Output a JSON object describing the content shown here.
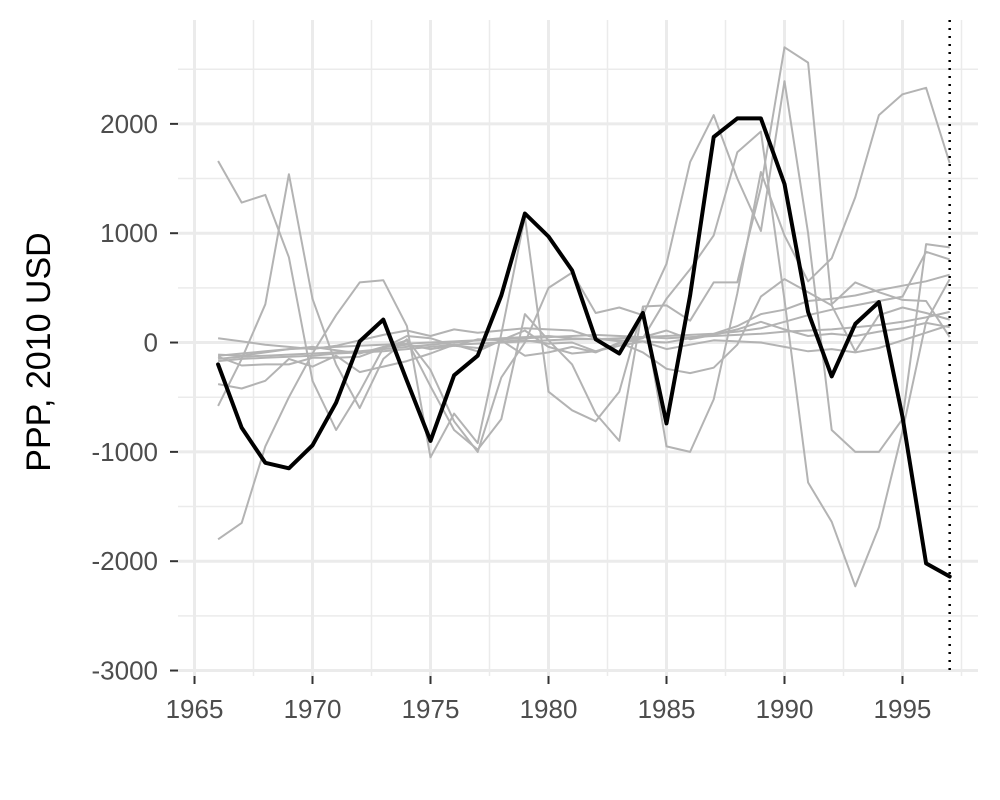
{
  "chart_data": {
    "type": "line",
    "title": "",
    "xlabel": "",
    "ylabel": "PPP, 2010 USD",
    "xlim": [
      1964.3,
      1998.2
    ],
    "ylim": [
      -3050,
      2950
    ],
    "x_ticks": [
      1965,
      1970,
      1975,
      1980,
      1985,
      1990,
      1995
    ],
    "y_ticks": [
      -3000,
      -2000,
      -1000,
      0,
      1000,
      2000
    ],
    "x_tick_labels": [
      "1965",
      "1970",
      "1975",
      "1980",
      "1985",
      "1990",
      "1995"
    ],
    "y_tick_labels": [
      "-3000",
      "-2000",
      "-1000",
      "0",
      "1000",
      "2000"
    ],
    "grid": true,
    "legend": "none",
    "reference_line": {
      "x": 1997,
      "style": "dotted",
      "color": "#000000"
    },
    "colors": {
      "highlight": "#000000",
      "background_series": "#b3b3b3",
      "grid": "#ebebeb"
    },
    "x": [
      1966,
      1967,
      1968,
      1969,
      1970,
      1971,
      1972,
      1973,
      1974,
      1975,
      1976,
      1977,
      1978,
      1979,
      1980,
      1981,
      1982,
      1983,
      1984,
      1985,
      1986,
      1987,
      1988,
      1989,
      1990,
      1991,
      1992,
      1993,
      1994,
      1995,
      1996,
      1997
    ],
    "highlight_series": {
      "values": [
        -200,
        -780,
        -1100,
        -1150,
        -940,
        -550,
        10,
        210,
        -350,
        -900,
        -300,
        -120,
        430,
        1180,
        970,
        660,
        30,
        -100,
        270,
        -740,
        430,
        1880,
        2050,
        2050,
        1450,
        280,
        -310,
        170,
        370,
        -680,
        -2020,
        -2140
      ]
    },
    "series": [
      {
        "values": [
          1660,
          1280,
          1350,
          780,
          -350,
          -800,
          -450,
          -50,
          20,
          -400,
          -800,
          -980,
          -700,
          260,
          20,
          -200,
          -650,
          -900,
          330,
          340,
          200,
          550,
          550,
          1420,
          2700,
          2560,
          350,
          550,
          460,
          390,
          380,
          50
        ]
      },
      {
        "values": [
          -580,
          -150,
          350,
          1540,
          400,
          -200,
          -600,
          -150,
          30,
          -250,
          -720,
          -1000,
          -320,
          0,
          500,
          640,
          270,
          320,
          250,
          720,
          1650,
          2080,
          1500,
          1020,
          2390,
          1000,
          -800,
          -1000,
          -1000,
          -700,
          900,
          870
        ]
      },
      {
        "values": [
          -1800,
          -1650,
          -950,
          -500,
          -100,
          250,
          550,
          570,
          150,
          -1050,
          -650,
          -920,
          80,
          1150,
          -450,
          -620,
          -720,
          -450,
          320,
          -950,
          -1000,
          -520,
          450,
          1560,
          980,
          560,
          770,
          1330,
          2080,
          2270,
          2330,
          1640
        ]
      },
      {
        "values": [
          -380,
          -420,
          -350,
          -150,
          -220,
          -120,
          -270,
          -220,
          -170,
          -100,
          -20,
          -80,
          20,
          -120,
          -90,
          -40,
          -90,
          0,
          -90,
          -240,
          -280,
          -230,
          -20,
          420,
          580,
          460,
          340,
          -80,
          250,
          320,
          270,
          210
        ]
      },
      {
        "values": [
          -130,
          -210,
          -200,
          -200,
          -140,
          -140,
          -130,
          -50,
          60,
          40,
          -30,
          30,
          20,
          110,
          -40,
          -100,
          -80,
          -10,
          40,
          400,
          670,
          980,
          1740,
          1930,
          390,
          -1280,
          -1640,
          -2230,
          -1690,
          -810,
          190,
          580
        ]
      },
      {
        "values": [
          -150,
          -130,
          -120,
          -110,
          -100,
          -90,
          -80,
          -60,
          -40,
          -20,
          0,
          20,
          40,
          50,
          60,
          40,
          30,
          20,
          10,
          0,
          40,
          80,
          150,
          260,
          300,
          380,
          400,
          430,
          480,
          520,
          560,
          620
        ]
      },
      {
        "values": [
          40,
          10,
          -20,
          -40,
          -60,
          -30,
          20,
          70,
          110,
          60,
          120,
          90,
          110,
          130,
          120,
          110,
          40,
          10,
          50,
          110,
          30,
          70,
          120,
          190,
          120,
          60,
          80,
          60,
          100,
          130,
          180,
          140
        ]
      },
      {
        "values": [
          -110,
          -120,
          -90,
          -60,
          -40,
          -70,
          -100,
          -40,
          -20,
          -60,
          -30,
          -50,
          10,
          20,
          -10,
          0,
          -80,
          -30,
          10,
          -60,
          -20,
          20,
          10,
          0,
          -40,
          -80,
          -60,
          -90,
          -50,
          20,
          90,
          160
        ]
      },
      {
        "values": [
          -120,
          -100,
          -80,
          -60,
          -50,
          -40,
          -30,
          -20,
          -10,
          0,
          10,
          20,
          30,
          40,
          50,
          60,
          70,
          60,
          50,
          40,
          50,
          60,
          70,
          80,
          100,
          110,
          120,
          140,
          160,
          190,
          230,
          280
        ]
      },
      {
        "values": [
          -170,
          -150,
          -140,
          -130,
          -120,
          -100,
          -90,
          -80,
          -60,
          -40,
          -20,
          -10,
          0,
          10,
          20,
          30,
          30,
          40,
          50,
          60,
          70,
          80,
          100,
          130,
          190,
          250,
          300,
          340,
          380,
          420,
          830,
          760
        ]
      }
    ]
  }
}
